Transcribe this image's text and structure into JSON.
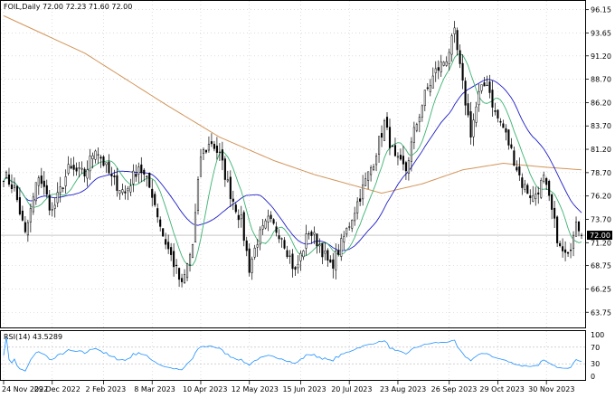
{
  "header": {
    "text": "FOIL,Daily  72.00 72.23 71.60 72.00"
  },
  "rsi": {
    "label": "RSI(14) 43.5289",
    "levels": [
      70,
      30
    ],
    "ylim": [
      0,
      100
    ],
    "ticks": [
      "100",
      "70",
      "30",
      "0"
    ]
  },
  "price_axis": {
    "ylim": [
      63.0,
      96.6
    ],
    "ticks": [
      "96.15",
      "93.65",
      "91.20",
      "88.70",
      "86.20",
      "83.70",
      "81.20",
      "78.70",
      "76.20",
      "73.70",
      "71.20",
      "68.75",
      "66.25",
      "63.75"
    ]
  },
  "current_price": {
    "label": "72.00",
    "value": 72.0
  },
  "colors": {
    "candles": "#000000",
    "ma_fast": "#3cb371",
    "ma_mid": "#1e1ec8",
    "ma_slow": "#d2955a",
    "rsi_line": "#1e90ff",
    "price_badge": "#000000"
  },
  "chart_data": {
    "type": "candlestick",
    "symbol": "FOIL",
    "timeframe": "Daily",
    "ohlc_last": {
      "open": 72.0,
      "high": 72.23,
      "low": 71.6,
      "close": 72.0
    },
    "x_ticks": [
      "24 Nov 2022",
      "29 Dec 2022",
      "2 Feb 2023",
      "8 Mar 2023",
      "10 Apr 2023",
      "12 May 2023",
      "15 Jun 2023",
      "20 Jul 2023",
      "23 Aug 2023",
      "26 Sep 2023",
      "29 Oct 2023",
      "30 Nov 2023"
    ],
    "close_anchors": [
      [
        0,
        78.5
      ],
      [
        4,
        77.0
      ],
      [
        8,
        72.0
      ],
      [
        13,
        78.5
      ],
      [
        18,
        74.5
      ],
      [
        24,
        79.0
      ],
      [
        30,
        78.5
      ],
      [
        34,
        81.5
      ],
      [
        40,
        78.0
      ],
      [
        45,
        76.5
      ],
      [
        50,
        79.5
      ],
      [
        55,
        76.5
      ],
      [
        59,
        72.0
      ],
      [
        63,
        69.0
      ],
      [
        66,
        66.5
      ],
      [
        70,
        71.0
      ],
      [
        73,
        80.5
      ],
      [
        77,
        82.0
      ],
      [
        80,
        80.5
      ],
      [
        84,
        76.5
      ],
      [
        88,
        73.5
      ],
      [
        91,
        68.5
      ],
      [
        94,
        71.5
      ],
      [
        98,
        73.5
      ],
      [
        103,
        72.0
      ],
      [
        108,
        68.0
      ],
      [
        113,
        72.5
      ],
      [
        117,
        71.0
      ],
      [
        121,
        68.5
      ],
      [
        125,
        71.0
      ],
      [
        129,
        74.0
      ],
      [
        133,
        77.0
      ],
      [
        137,
        80.0
      ],
      [
        141,
        84.0
      ],
      [
        145,
        80.0
      ],
      [
        149,
        79.0
      ],
      [
        152,
        83.0
      ],
      [
        156,
        87.0
      ],
      [
        160,
        89.5
      ],
      [
        164,
        91.0
      ],
      [
        167,
        93.5
      ],
      [
        170,
        88.0
      ],
      [
        173,
        83.0
      ],
      [
        176,
        87.0
      ],
      [
        179,
        88.5
      ],
      [
        182,
        85.0
      ],
      [
        185,
        83.5
      ],
      [
        188,
        81.0
      ],
      [
        192,
        77.5
      ],
      [
        196,
        76.0
      ],
      [
        200,
        78.0
      ],
      [
        203,
        74.5
      ],
      [
        206,
        70.5
      ],
      [
        209,
        69.5
      ],
      [
        212,
        74.0
      ],
      [
        214,
        72.0
      ]
    ],
    "ma_slow_anchors": [
      [
        0,
        95.5
      ],
      [
        30,
        91.5
      ],
      [
        60,
        86.0
      ],
      [
        80,
        82.5
      ],
      [
        100,
        80.0
      ],
      [
        115,
        78.5
      ],
      [
        130,
        77.3
      ],
      [
        140,
        76.5
      ],
      [
        155,
        77.5
      ],
      [
        170,
        79.0
      ],
      [
        185,
        79.7
      ],
      [
        200,
        79.3
      ],
      [
        214,
        79.0
      ]
    ],
    "series": [
      {
        "name": "ma_fast"
      },
      {
        "name": "ma_mid"
      },
      {
        "name": "ma_slow"
      },
      {
        "name": "rsi"
      }
    ]
  }
}
